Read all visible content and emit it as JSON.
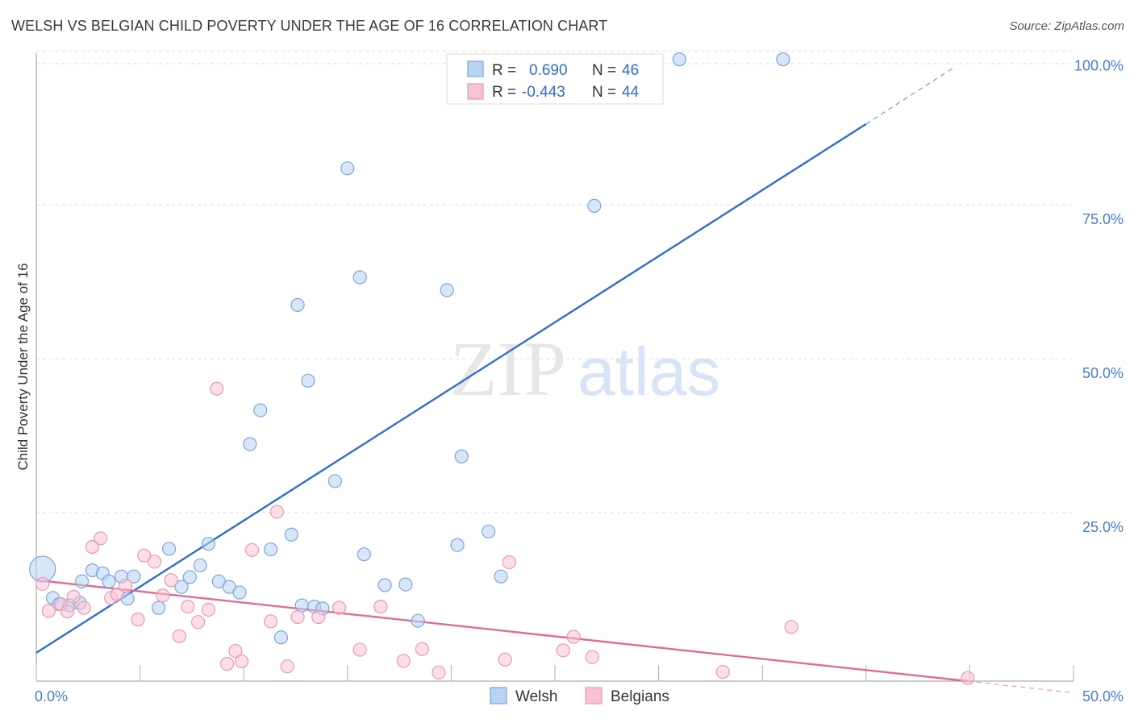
{
  "title": "WELSH VS BELGIAN CHILD POVERTY UNDER THE AGE OF 16 CORRELATION CHART",
  "source": "Source: ZipAtlas.com",
  "watermark": {
    "zip": "ZIP",
    "atlas": "atlas"
  },
  "colors": {
    "welsh_fill": "#b8d3f3",
    "welsh_stroke": "#7aa6dc",
    "welsh_line": "#2f6fc7",
    "belgian_fill": "#f7c3d3",
    "belgian_stroke": "#ea98b2",
    "belgian_line": "#e06b96",
    "grid": "#dedede",
    "axis": "#999999",
    "tick_text": "#4a7cc9"
  },
  "legend": {
    "rows": [
      {
        "r_label": "R =",
        "r_value": "0.690",
        "n_label": "N =",
        "n_value": "46"
      },
      {
        "r_label": "R =",
        "r_value": "-0.443",
        "n_label": "N =",
        "n_value": "44"
      }
    ]
  },
  "bottom_legend": [
    "Welsh",
    "Belgians"
  ],
  "chart_data": {
    "type": "scatter",
    "title": "WELSH VS BELGIAN CHILD POVERTY UNDER THE AGE OF 16 CORRELATION CHART",
    "xlabel": "",
    "ylabel": "Child Poverty Under the Age of 16",
    "xlim": [
      0,
      50
    ],
    "ylim": [
      0,
      102
    ],
    "x_tick_labels": [
      "0.0%",
      "50.0%"
    ],
    "y_ticks": [
      25,
      50,
      75,
      100
    ],
    "y_tick_labels": [
      "25.0%",
      "50.0%",
      "75.0%",
      "100.0%"
    ],
    "series": [
      {
        "name": "Welsh",
        "points": [
          [
            0.3,
            18.2
          ],
          [
            0.8,
            13.5
          ],
          [
            1.1,
            12.5
          ],
          [
            1.6,
            12.3
          ],
          [
            2.1,
            12.7
          ],
          [
            2.2,
            16.2
          ],
          [
            2.7,
            18.0
          ],
          [
            3.2,
            17.5
          ],
          [
            3.5,
            16.2
          ],
          [
            4.1,
            17.0
          ],
          [
            4.4,
            13.4
          ],
          [
            4.7,
            17.0
          ],
          [
            5.9,
            11.9
          ],
          [
            6.4,
            21.5
          ],
          [
            7.0,
            15.3
          ],
          [
            7.4,
            16.9
          ],
          [
            7.9,
            18.8
          ],
          [
            8.3,
            22.3
          ],
          [
            8.8,
            16.2
          ],
          [
            9.3,
            15.3
          ],
          [
            9.8,
            14.4
          ],
          [
            10.3,
            38.5
          ],
          [
            10.8,
            44.0
          ],
          [
            11.3,
            21.4
          ],
          [
            11.8,
            7.1
          ],
          [
            12.3,
            23.8
          ],
          [
            12.6,
            61.1
          ],
          [
            12.8,
            12.3
          ],
          [
            13.1,
            48.8
          ],
          [
            13.4,
            12.1
          ],
          [
            13.8,
            11.8
          ],
          [
            14.4,
            32.5
          ],
          [
            15.0,
            83.3
          ],
          [
            15.6,
            65.6
          ],
          [
            15.8,
            20.6
          ],
          [
            16.8,
            15.6
          ],
          [
            17.8,
            15.7
          ],
          [
            18.4,
            9.8
          ],
          [
            19.8,
            63.5
          ],
          [
            20.3,
            22.1
          ],
          [
            20.5,
            36.5
          ],
          [
            21.8,
            24.3
          ],
          [
            22.4,
            17.0
          ],
          [
            26.9,
            77.2
          ],
          [
            31.0,
            101.0
          ],
          [
            36.0,
            101.0
          ]
        ]
      },
      {
        "name": "Belgians",
        "points": [
          [
            0.3,
            15.8
          ],
          [
            0.6,
            11.4
          ],
          [
            1.2,
            12.5
          ],
          [
            1.5,
            11.3
          ],
          [
            1.8,
            13.7
          ],
          [
            2.3,
            11.9
          ],
          [
            2.7,
            21.8
          ],
          [
            3.1,
            23.2
          ],
          [
            3.6,
            13.5
          ],
          [
            3.9,
            14.1
          ],
          [
            4.3,
            15.5
          ],
          [
            4.9,
            10.0
          ],
          [
            5.2,
            20.4
          ],
          [
            5.7,
            19.4
          ],
          [
            6.1,
            13.9
          ],
          [
            6.5,
            16.4
          ],
          [
            6.9,
            7.3
          ],
          [
            7.3,
            12.1
          ],
          [
            7.8,
            9.6
          ],
          [
            8.3,
            11.6
          ],
          [
            8.7,
            47.5
          ],
          [
            9.2,
            2.8
          ],
          [
            9.6,
            4.9
          ],
          [
            9.9,
            3.2
          ],
          [
            10.4,
            21.3
          ],
          [
            11.3,
            9.7
          ],
          [
            11.6,
            27.5
          ],
          [
            12.1,
            2.4
          ],
          [
            12.6,
            10.4
          ],
          [
            13.6,
            10.4
          ],
          [
            14.6,
            11.9
          ],
          [
            15.6,
            5.1
          ],
          [
            16.6,
            12.1
          ],
          [
            17.7,
            3.3
          ],
          [
            18.6,
            5.2
          ],
          [
            19.4,
            1.4
          ],
          [
            22.6,
            3.5
          ],
          [
            22.8,
            19.3
          ],
          [
            25.4,
            5.0
          ],
          [
            25.9,
            7.2
          ],
          [
            26.8,
            3.9
          ],
          [
            33.1,
            1.5
          ],
          [
            36.4,
            8.8
          ],
          [
            44.9,
            0.5
          ]
        ]
      }
    ],
    "trendlines": [
      {
        "name": "Welsh",
        "x0": 0,
        "y0": 4.6,
        "x1": 40,
        "y1": 90.5,
        "dashed_to_x": 44.2,
        "dashed_to_y": 99.6
      },
      {
        "name": "Belgians",
        "x0": 0,
        "y0": 16.4,
        "x1": 44.9,
        "y1": 0,
        "dashed_to_x": 50,
        "dashed_to_y": -1.9
      }
    ],
    "grid": true,
    "legend_position": "top-center"
  }
}
